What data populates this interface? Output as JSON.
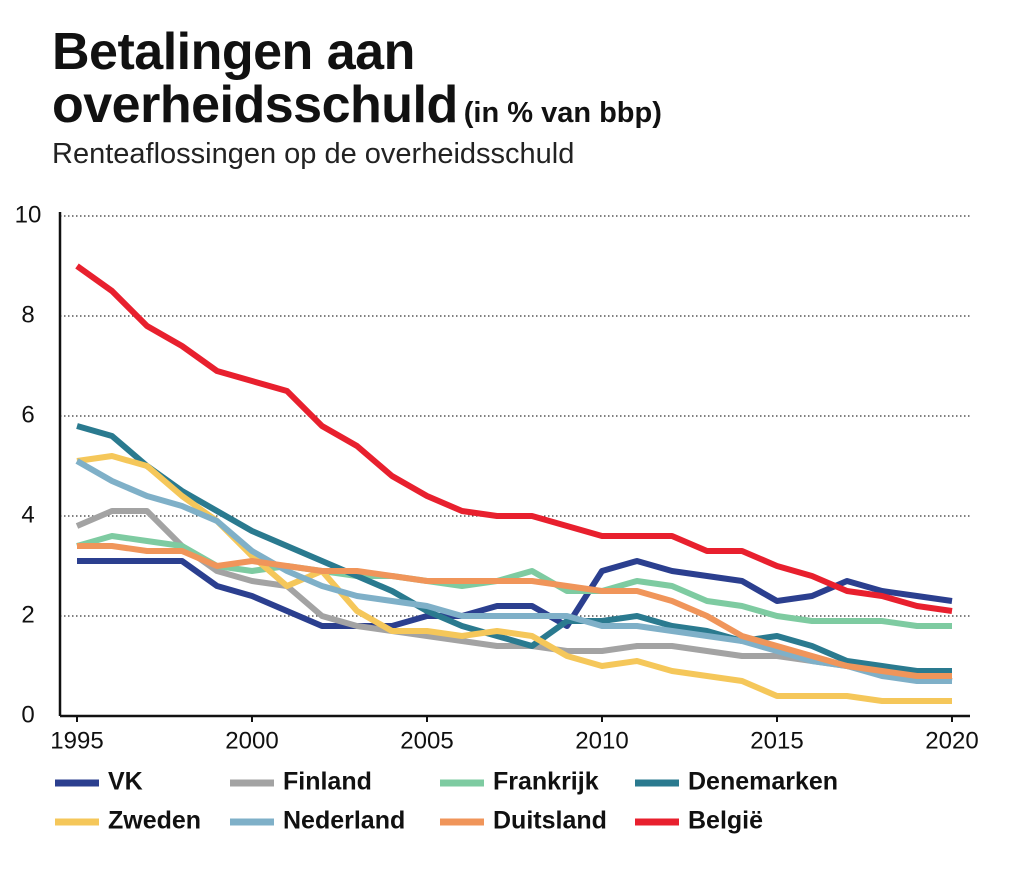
{
  "chart_data": {
    "type": "line",
    "title": "Betalingen aan overheidsschuld",
    "title_note": "(in % van bbp)",
    "subtitle": "Renteaflossingen op de overheidsschuld",
    "x": [
      1995,
      1996,
      1997,
      1998,
      1999,
      2000,
      2001,
      2002,
      2003,
      2004,
      2005,
      2006,
      2007,
      2008,
      2009,
      2010,
      2011,
      2012,
      2013,
      2014,
      2015,
      2016,
      2017,
      2018,
      2019,
      2020
    ],
    "xlim": [
      1995,
      2020
    ],
    "xticks": [
      1995,
      2000,
      2005,
      2010,
      2015,
      2020
    ],
    "ylim": [
      0,
      10
    ],
    "yticks": [
      0,
      2,
      4,
      6,
      8,
      10
    ],
    "grid": true,
    "series": [
      {
        "name": "VK",
        "color": "#2b3f8f",
        "values": [
          3.1,
          3.1,
          3.1,
          3.1,
          2.6,
          2.4,
          2.1,
          1.8,
          1.8,
          1.8,
          2.0,
          2.0,
          2.2,
          2.2,
          1.8,
          2.9,
          3.1,
          2.9,
          2.8,
          2.7,
          2.3,
          2.4,
          2.7,
          2.5,
          2.4,
          2.3
        ]
      },
      {
        "name": "Finland",
        "color": "#a3a3a3",
        "values": [
          3.8,
          4.1,
          4.1,
          3.4,
          2.9,
          2.7,
          2.6,
          2.0,
          1.8,
          1.7,
          1.6,
          1.5,
          1.4,
          1.4,
          1.3,
          1.3,
          1.4,
          1.4,
          1.3,
          1.2,
          1.2,
          1.1,
          1.0,
          0.9,
          0.8,
          0.7
        ]
      },
      {
        "name": "Frankrijk",
        "color": "#7ecba1",
        "values": [
          3.4,
          3.6,
          3.5,
          3.4,
          3.0,
          2.9,
          3.0,
          2.9,
          2.8,
          2.8,
          2.7,
          2.6,
          2.7,
          2.9,
          2.5,
          2.5,
          2.7,
          2.6,
          2.3,
          2.2,
          2.0,
          1.9,
          1.9,
          1.9,
          1.8,
          1.8
        ]
      },
      {
        "name": "Denemarken",
        "color": "#2a7a8f",
        "values": [
          5.8,
          5.6,
          5.0,
          4.5,
          4.1,
          3.7,
          3.4,
          3.1,
          2.8,
          2.5,
          2.1,
          1.8,
          1.6,
          1.4,
          1.9,
          1.9,
          2.0,
          1.8,
          1.7,
          1.5,
          1.6,
          1.4,
          1.1,
          1.0,
          0.9,
          0.9
        ]
      },
      {
        "name": "Zweden",
        "color": "#f5c75a",
        "values": [
          5.1,
          5.2,
          5.0,
          4.4,
          3.9,
          3.2,
          2.6,
          2.9,
          2.1,
          1.7,
          1.7,
          1.6,
          1.7,
          1.6,
          1.2,
          1.0,
          1.1,
          0.9,
          0.8,
          0.7,
          0.4,
          0.4,
          0.4,
          0.3,
          0.3,
          0.3
        ]
      },
      {
        "name": "Nederland",
        "color": "#7fb0c8",
        "values": [
          5.1,
          4.7,
          4.4,
          4.2,
          3.9,
          3.3,
          2.9,
          2.6,
          2.4,
          2.3,
          2.2,
          2.0,
          2.0,
          2.0,
          2.0,
          1.8,
          1.8,
          1.7,
          1.6,
          1.5,
          1.3,
          1.1,
          1.0,
          0.8,
          0.7,
          0.7
        ]
      },
      {
        "name": "Duitsland",
        "color": "#f0955a",
        "values": [
          3.4,
          3.4,
          3.3,
          3.3,
          3.0,
          3.1,
          3.0,
          2.9,
          2.9,
          2.8,
          2.7,
          2.7,
          2.7,
          2.7,
          2.6,
          2.5,
          2.5,
          2.3,
          2.0,
          1.6,
          1.4,
          1.2,
          1.0,
          0.9,
          0.8,
          0.8
        ]
      },
      {
        "name": "België",
        "color": "#e8202e",
        "values": [
          9.0,
          8.5,
          7.8,
          7.4,
          6.9,
          6.7,
          6.5,
          5.8,
          5.4,
          4.8,
          4.4,
          4.1,
          4.0,
          4.0,
          3.8,
          3.6,
          3.6,
          3.6,
          3.3,
          3.3,
          3.0,
          2.8,
          2.5,
          2.4,
          2.2,
          2.1
        ]
      }
    ]
  }
}
